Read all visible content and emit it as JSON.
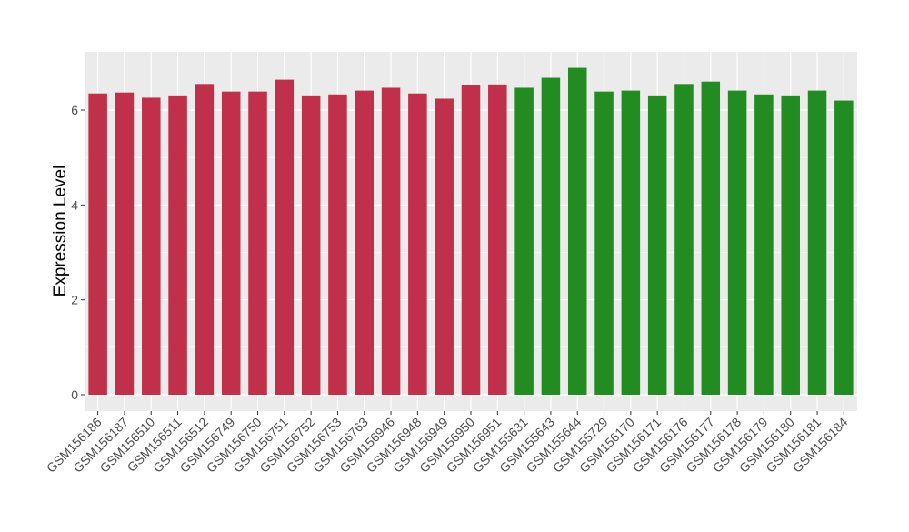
{
  "chart_data": {
    "type": "bar",
    "ylabel": "Expression Level",
    "xlabel": "",
    "ylim": [
      -0.25,
      7.0
    ],
    "yticks": [
      0,
      2,
      4,
      6
    ],
    "grid": true,
    "categories": [
      "GSM156186",
      "GSM156187",
      "GSM156510",
      "GSM156511",
      "GSM156512",
      "GSM156749",
      "GSM156750",
      "GSM156751",
      "GSM156752",
      "GSM156753",
      "GSM156763",
      "GSM156946",
      "GSM156948",
      "GSM156949",
      "GSM156950",
      "GSM156951",
      "GSM155631",
      "GSM155643",
      "GSM155644",
      "GSM155729",
      "GSM156170",
      "GSM156171",
      "GSM156176",
      "GSM156177",
      "GSM156178",
      "GSM156179",
      "GSM156180",
      "GSM156181",
      "GSM156184"
    ],
    "values": [
      6.35,
      6.37,
      6.26,
      6.29,
      6.55,
      6.39,
      6.39,
      6.64,
      6.29,
      6.33,
      6.41,
      6.47,
      6.35,
      6.24,
      6.52,
      6.54,
      6.47,
      6.68,
      6.89,
      6.39,
      6.41,
      6.29,
      6.55,
      6.6,
      6.41,
      6.33,
      6.29,
      6.41,
      6.2
    ],
    "groups": [
      "a",
      "a",
      "a",
      "a",
      "a",
      "a",
      "a",
      "a",
      "a",
      "a",
      "a",
      "a",
      "a",
      "a",
      "a",
      "a",
      "b",
      "b",
      "b",
      "b",
      "b",
      "b",
      "b",
      "b",
      "b",
      "b",
      "b",
      "b",
      "b"
    ],
    "group_colors": {
      "a": "#C0304A",
      "b": "#228B22"
    },
    "panel_background": "#EBEBEB",
    "grid_color": "#FFFFFF"
  }
}
